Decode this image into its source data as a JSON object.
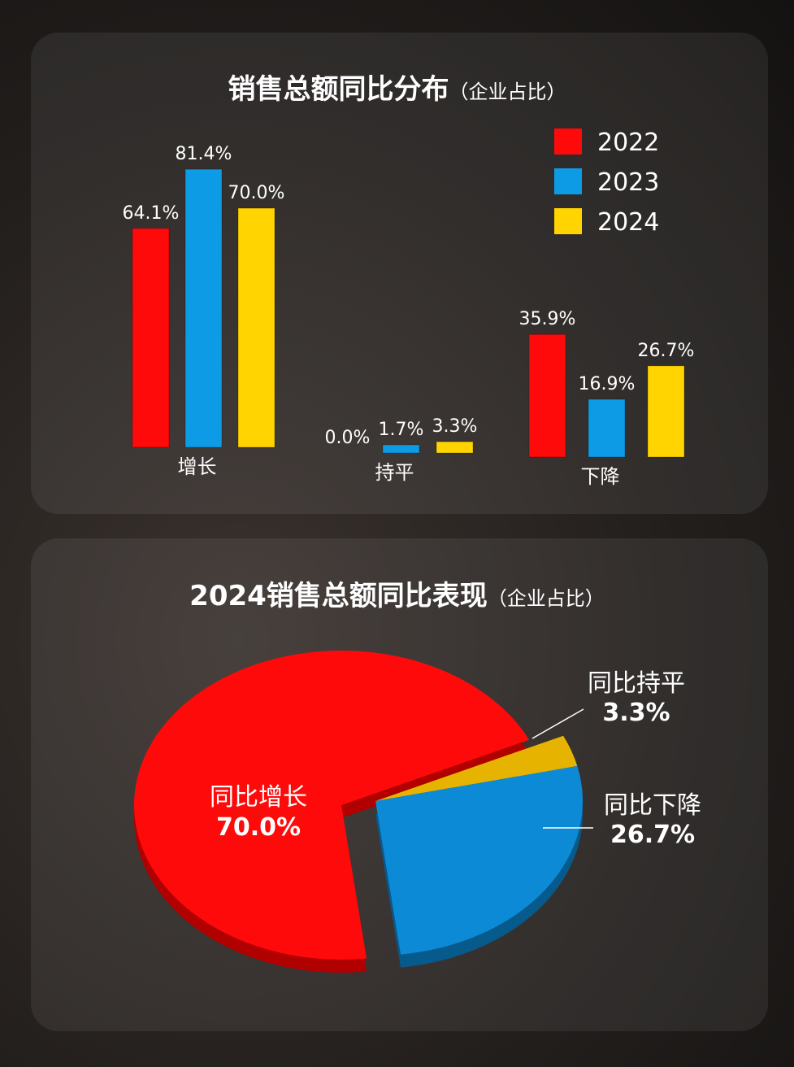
{
  "chart_data": [
    {
      "type": "bar",
      "title": "销售总额同比分布",
      "subtitle": "（企业占比）",
      "categories": [
        "增长",
        "持平",
        "下降"
      ],
      "series": [
        {
          "name": "2022",
          "color": "#ff0a0a",
          "values": [
            64.1,
            0.0,
            35.9
          ]
        },
        {
          "name": "2023",
          "color": "#0d9be6",
          "values": [
            81.4,
            1.7,
            16.9
          ]
        },
        {
          "name": "2024",
          "color": "#ffd400",
          "values": [
            70.0,
            3.3,
            26.7
          ]
        }
      ],
      "value_format": "%",
      "legend": "top-right",
      "grid": false
    },
    {
      "type": "pie",
      "style": "3d-exploded",
      "title": "2024销售总额同比表现",
      "subtitle": "（企业占比）",
      "slices": [
        {
          "label": "同比增长",
          "value": 70.0,
          "display": "70.0%",
          "color": "#ff0a0a"
        },
        {
          "label": "同比持平",
          "value": 3.3,
          "display": "3.3%",
          "color": "#e6b400"
        },
        {
          "label": "同比下降",
          "value": 26.7,
          "display": "26.7%",
          "color": "#0d8ad6"
        }
      ]
    }
  ]
}
